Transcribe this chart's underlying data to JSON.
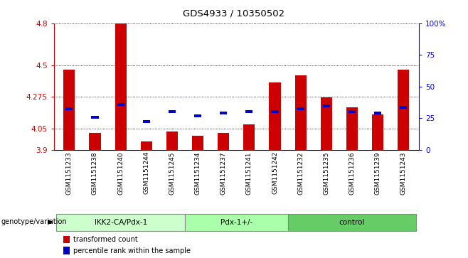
{
  "title": "GDS4933 / 10350502",
  "samples": [
    "GSM1151233",
    "GSM1151238",
    "GSM1151240",
    "GSM1151244",
    "GSM1151245",
    "GSM1151234",
    "GSM1151237",
    "GSM1151241",
    "GSM1151242",
    "GSM1151232",
    "GSM1151235",
    "GSM1151236",
    "GSM1151239",
    "GSM1151243"
  ],
  "red_values": [
    4.47,
    4.02,
    4.8,
    3.96,
    4.03,
    4.0,
    4.02,
    4.08,
    4.38,
    4.43,
    4.27,
    4.2,
    4.15,
    4.47
  ],
  "blue_values": [
    4.19,
    4.13,
    4.22,
    4.1,
    4.17,
    4.14,
    4.16,
    4.17,
    4.17,
    4.19,
    4.21,
    4.17,
    4.16,
    4.2
  ],
  "groups": [
    {
      "label": "IKK2-CA/Pdx-1",
      "start": 0,
      "end": 5,
      "color": "#ccffcc"
    },
    {
      "label": "Pdx-1+/-",
      "start": 5,
      "end": 9,
      "color": "#aaffaa"
    },
    {
      "label": "control",
      "start": 9,
      "end": 14,
      "color": "#66cc66"
    }
  ],
  "ymin": 3.9,
  "ymax": 4.8,
  "yticks": [
    3.9,
    4.05,
    4.275,
    4.5,
    4.8
  ],
  "ytick_labels": [
    "3.9",
    "4.05",
    "4.275",
    "4.5",
    "4.8"
  ],
  "right_yticks": [
    0,
    25,
    50,
    75,
    100
  ],
  "right_ytick_labels": [
    "0",
    "25",
    "50",
    "75",
    "100%"
  ],
  "bar_width": 0.45,
  "blue_bar_width": 0.28,
  "blue_bar_height": 0.022,
  "left_color": "#cc0000",
  "blue_color": "#0000cc",
  "bg_color": "#ffffff",
  "sample_bg_color": "#cccccc",
  "group_label": "genotype/variation",
  "legend_red": "transformed count",
  "legend_blue": "percentile rank within the sample"
}
